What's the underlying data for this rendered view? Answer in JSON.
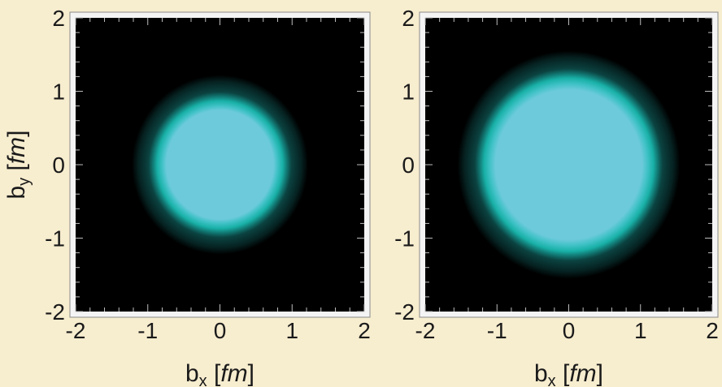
{
  "chart_data": [
    {
      "type": "heatmap",
      "title": "",
      "xlabel": "b",
      "xlabel_sub": "x",
      "xlabel_unit": "fm",
      "ylabel": "b",
      "ylabel_sub": "y",
      "ylabel_unit": "fm",
      "xlim": [
        -2,
        2
      ],
      "ylim": [
        -2,
        2
      ],
      "x_ticks": [
        -2,
        -1,
        0,
        1,
        2
      ],
      "y_ticks": [
        -2,
        -1,
        0,
        1,
        2
      ],
      "x_tick_labels": [
        "-2",
        "-1",
        "0",
        "1",
        "2"
      ],
      "y_tick_labels": [
        "-2",
        "-1",
        "0",
        "1",
        "2"
      ],
      "distribution": {
        "shape": "radial disk",
        "center": [
          0,
          0
        ],
        "core_radius": 0.8,
        "edge_radius": 0.87,
        "halo_radius": 1.22
      },
      "colors": {
        "background": "#000000",
        "core": "#6ccadb",
        "edge": "#18b0a7",
        "halo": "#0c4a48"
      }
    },
    {
      "type": "heatmap",
      "title": "",
      "xlabel": "b",
      "xlabel_sub": "x",
      "xlabel_unit": "fm",
      "ylabel": "",
      "xlim": [
        -2,
        2
      ],
      "ylim": [
        -2,
        2
      ],
      "x_ticks": [
        -2,
        -1,
        0,
        1,
        2
      ],
      "y_ticks": [
        -2,
        -1,
        0,
        1,
        2
      ],
      "x_tick_labels": [
        "-2",
        "-1",
        "0",
        "1",
        "2"
      ],
      "y_tick_labels": [
        "-2",
        "-1",
        "0",
        "1",
        "2"
      ],
      "distribution": {
        "shape": "radial disk",
        "center": [
          0,
          0
        ],
        "core_radius": 1.1,
        "edge_radius": 1.18,
        "halo_radius": 1.55
      },
      "colors": {
        "background": "#000000",
        "core": "#6ccadb",
        "edge": "#18b0a7",
        "halo": "#0c4a48"
      }
    }
  ]
}
